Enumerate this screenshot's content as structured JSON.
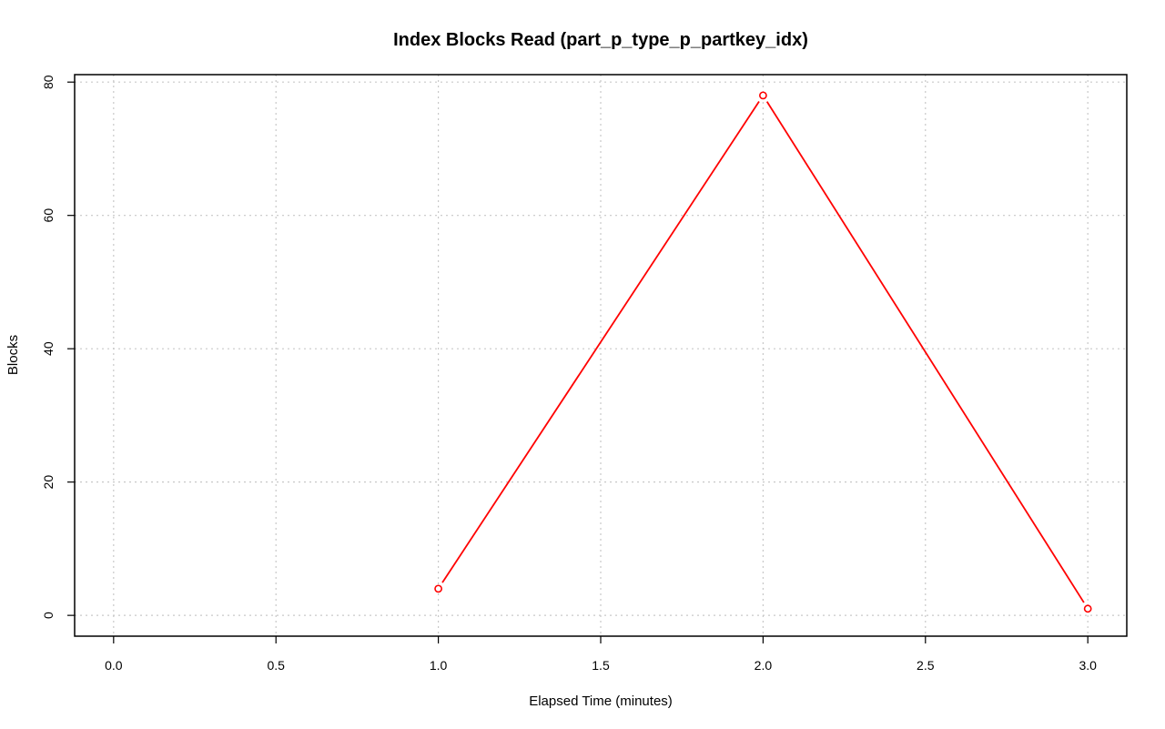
{
  "chart_data": {
    "type": "line",
    "title": "Index Blocks Read (part_p_type_p_partkey_idx)",
    "xlabel": "Elapsed Time (minutes)",
    "ylabel": "Blocks",
    "xlim": [
      -0.12,
      3.12
    ],
    "ylim": [
      -3.12,
      81.12
    ],
    "x_ticks": [
      0.0,
      0.5,
      1.0,
      1.5,
      2.0,
      2.5,
      3.0
    ],
    "x_tick_labels": [
      "0.0",
      "0.5",
      "1.0",
      "1.5",
      "2.0",
      "2.5",
      "3.0"
    ],
    "y_ticks": [
      0,
      20,
      40,
      60,
      80
    ],
    "y_tick_labels": [
      "0",
      "20",
      "40",
      "60",
      "80"
    ],
    "grid": true,
    "legend": "none",
    "series": [
      {
        "x": [
          1.0,
          2.0,
          3.0
        ],
        "y": [
          4,
          78,
          1
        ],
        "color": "#ff0000",
        "marker": "open-circle"
      }
    ]
  }
}
